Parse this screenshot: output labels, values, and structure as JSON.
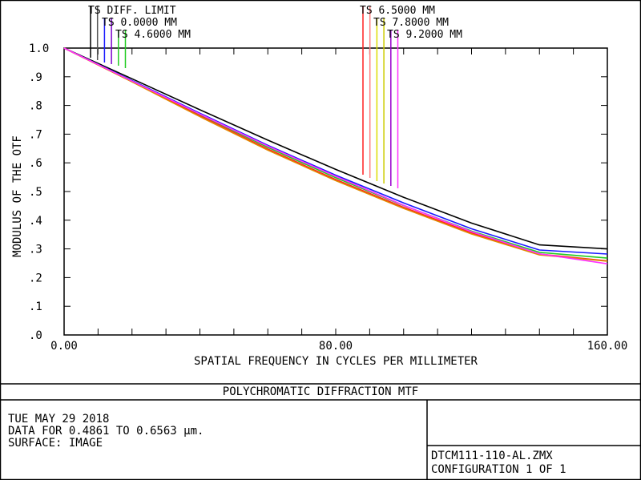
{
  "chart_data": {
    "type": "line",
    "title": "POLYCHROMATIC DIFFRACTION MTF",
    "xlabel": "SPATIAL FREQUENCY IN CYCLES PER MILLIMETER",
    "ylabel": "MODULUS OF THE OTF",
    "xlim": [
      0,
      160
    ],
    "ylim": [
      0,
      1
    ],
    "x_ticks": [
      {
        "value": 0,
        "label": "0.00"
      },
      {
        "value": 80,
        "label": "80.00"
      },
      {
        "value": 160,
        "label": "160.00"
      }
    ],
    "y_ticks": [
      {
        "value": 0.0,
        "label": ".0"
      },
      {
        "value": 0.1,
        "label": ".1"
      },
      {
        "value": 0.2,
        "label": ".2"
      },
      {
        "value": 0.3,
        "label": ".3"
      },
      {
        "value": 0.4,
        "label": ".4"
      },
      {
        "value": 0.5,
        "label": ".5"
      },
      {
        "value": 0.6,
        "label": ".6"
      },
      {
        "value": 0.7,
        "label": ".7"
      },
      {
        "value": 0.8,
        "label": ".8"
      },
      {
        "value": 0.9,
        "label": ".9"
      },
      {
        "value": 1.0,
        "label": "1.0"
      }
    ],
    "x": [
      0,
      20,
      40,
      60,
      80,
      100,
      120,
      140,
      160
    ],
    "series": [
      {
        "name": "TS DIFF. LIMIT",
        "color": "#000000",
        "values": [
          1.0,
          0.893,
          0.785,
          0.679,
          0.577,
          0.48,
          0.39,
          0.314,
          0.3
        ]
      },
      {
        "name": "TS 0.0000 MM",
        "color": "#1a1aff",
        "values": [
          1.0,
          0.887,
          0.773,
          0.661,
          0.557,
          0.46,
          0.37,
          0.296,
          0.282
        ]
      },
      {
        "name": "TS 4.6000 MM",
        "color": "#22cc22",
        "values": [
          1.0,
          0.885,
          0.768,
          0.654,
          0.548,
          0.451,
          0.362,
          0.288,
          0.268
        ]
      },
      {
        "name": "TS 6.5000 MM",
        "color": "#ff2020",
        "values": [
          1.0,
          0.883,
          0.764,
          0.648,
          0.542,
          0.445,
          0.356,
          0.282,
          0.258
        ]
      },
      {
        "name": "TS 7.8000 MM",
        "color": "#e08a00",
        "values": [
          1.0,
          0.882,
          0.761,
          0.644,
          0.538,
          0.441,
          0.352,
          0.279,
          0.257
        ]
      },
      {
        "name": "TS 9.2000 MM",
        "color": "#ff30ff",
        "values": [
          1.0,
          0.885,
          0.77,
          0.658,
          0.553,
          0.452,
          0.36,
          0.283,
          0.248
        ]
      }
    ],
    "legend_marker_colors": [
      "#000000",
      "#555555",
      "#1a1aff",
      "#7a00cc",
      "#22cc22",
      "#22cc22",
      "#ff2020",
      "#ff8080",
      "#dddd00",
      "#cccc00",
      "#9900cc",
      "#ff30ff"
    ],
    "grid": false,
    "legend": "top"
  },
  "info": {
    "date": "TUE MAY 29 2018",
    "data_line": "DATA FOR 0.4861 TO 0.6563 µm.",
    "surface": "SURFACE: IMAGE"
  },
  "file": {
    "name": "DTCM111-110-AL.ZMX",
    "configuration": "CONFIGURATION 1 OF 1"
  }
}
